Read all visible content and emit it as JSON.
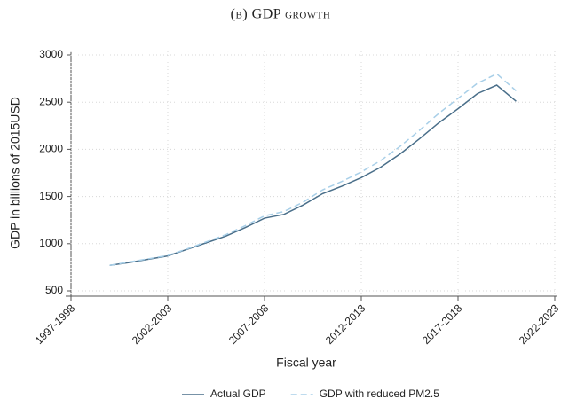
{
  "chart_data": {
    "type": "line",
    "title": "(b) GDP growth",
    "x_label": "Fiscal year",
    "y_label": "GDP in billions of 2015USD",
    "categories": [
      "1997-1998",
      null,
      null,
      null,
      null,
      "2002-2003",
      null,
      null,
      null,
      null,
      "2007-2008",
      null,
      null,
      null,
      null,
      "2012-2013",
      null,
      null,
      null,
      null,
      "2017-2018",
      null,
      null,
      null,
      null,
      "2022-2023"
    ],
    "series": [
      {
        "name": "Actual GDP",
        "color": "#4a6f8a",
        "dash": false,
        "values": [
          null,
          null,
          770,
          800,
          835,
          870,
          940,
          1010,
          1080,
          1170,
          1270,
          1310,
          1410,
          1530,
          1610,
          1700,
          1810,
          1950,
          2110,
          2280,
          2430,
          2590,
          2680,
          2510,
          null,
          null
        ]
      },
      {
        "name": "GDP with reduced PM2.5",
        "color": "#a8cfe8",
        "dash": true,
        "values": [
          null,
          null,
          770,
          805,
          840,
          875,
          945,
          1020,
          1095,
          1190,
          1295,
          1340,
          1440,
          1570,
          1660,
          1760,
          1880,
          2030,
          2200,
          2380,
          2540,
          2700,
          2800,
          2620,
          null,
          null
        ]
      }
    ],
    "ylim": [
      500,
      3000
    ],
    "yticks": [
      500,
      1000,
      1500,
      2000,
      2500,
      3000
    ],
    "grid": true,
    "legend": "bottom"
  }
}
